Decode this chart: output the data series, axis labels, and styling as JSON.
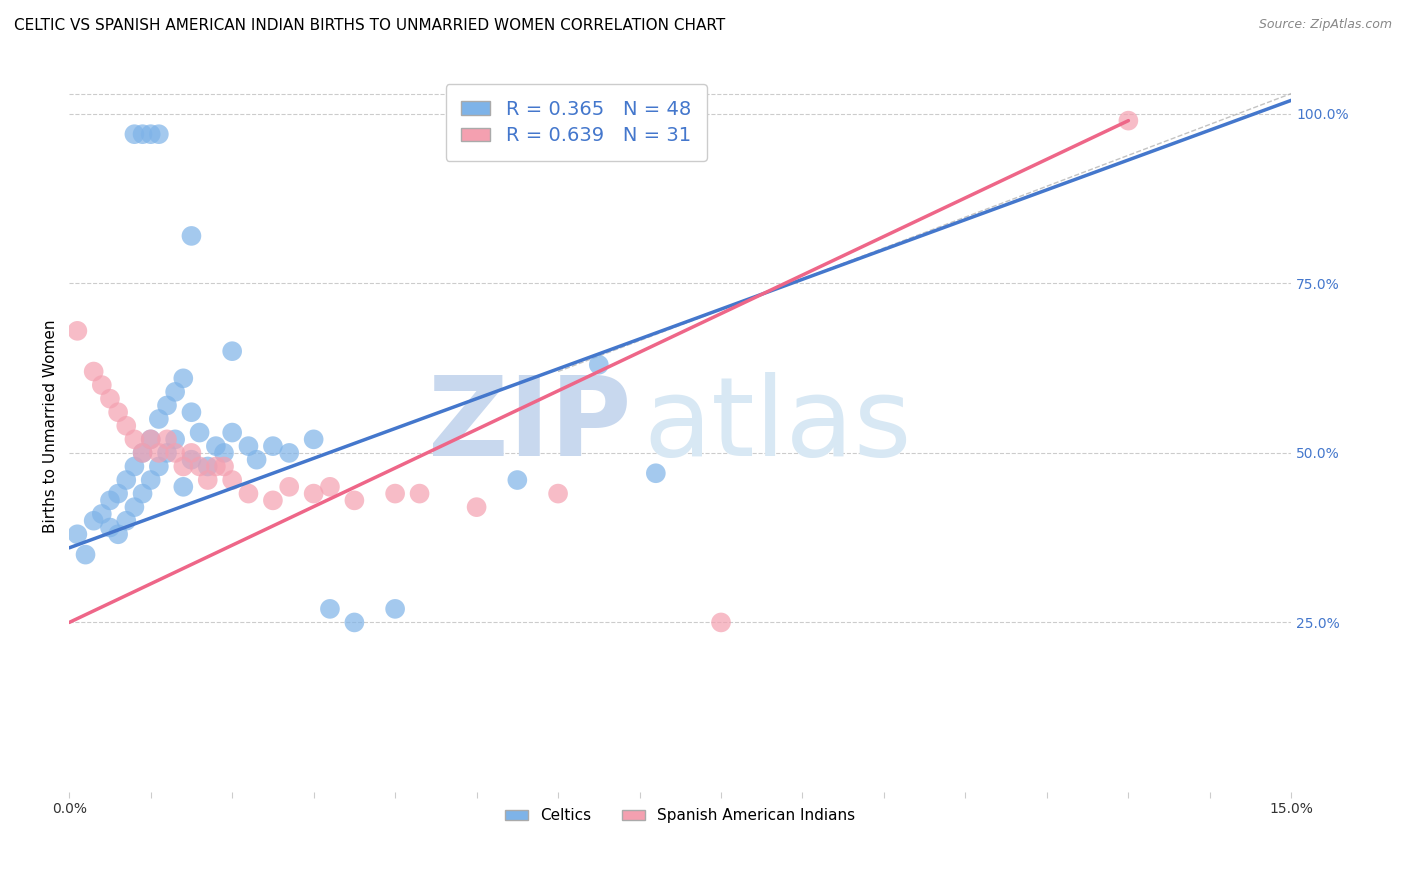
{
  "title": "CELTIC VS SPANISH AMERICAN INDIAN BIRTHS TO UNMARRIED WOMEN CORRELATION CHART",
  "source": "Source: ZipAtlas.com",
  "ylabel": "Births to Unmarried Women",
  "xlim": [
    0.0,
    0.15
  ],
  "ylim": [
    0.0,
    1.08
  ],
  "legend_label1": "R = 0.365   N = 48",
  "legend_label2": "R = 0.639   N = 31",
  "legend_labels_bottom": [
    "Celtics",
    "Spanish American Indians"
  ],
  "blue_color": "#7EB3E8",
  "pink_color": "#F4A0B0",
  "blue_line_color": "#4477CC",
  "pink_line_color": "#EE6688",
  "watermark_zip": "ZIP",
  "watermark_atlas": "atlas",
  "watermark_color": "#C8D8EE",
  "R_blue": 0.365,
  "N_blue": 48,
  "R_pink": 0.639,
  "N_pink": 31,
  "blue_line_x0": 0.0,
  "blue_line_y0": 0.36,
  "blue_line_x1": 0.15,
  "blue_line_y1": 1.02,
  "pink_line_x0": 0.0,
  "pink_line_y0": 0.25,
  "pink_line_x1": 0.13,
  "pink_line_y1": 0.99,
  "dash_line_x0": 0.06,
  "dash_line_y0": 0.62,
  "dash_line_x1": 0.15,
  "dash_line_y1": 1.03,
  "celtics_x": [
    0.001,
    0.002,
    0.003,
    0.004,
    0.005,
    0.005,
    0.006,
    0.006,
    0.007,
    0.007,
    0.008,
    0.008,
    0.009,
    0.009,
    0.01,
    0.01,
    0.011,
    0.011,
    0.012,
    0.012,
    0.013,
    0.013,
    0.014,
    0.014,
    0.015,
    0.015,
    0.016,
    0.017,
    0.018,
    0.019,
    0.02,
    0.022,
    0.023,
    0.025,
    0.027,
    0.03,
    0.032,
    0.035,
    0.04,
    0.055,
    0.065,
    0.072,
    0.008,
    0.009,
    0.01,
    0.011,
    0.015,
    0.02
  ],
  "celtics_y": [
    0.38,
    0.35,
    0.4,
    0.41,
    0.43,
    0.39,
    0.44,
    0.38,
    0.46,
    0.4,
    0.48,
    0.42,
    0.5,
    0.44,
    0.52,
    0.46,
    0.55,
    0.48,
    0.57,
    0.5,
    0.59,
    0.52,
    0.61,
    0.45,
    0.56,
    0.49,
    0.53,
    0.48,
    0.51,
    0.5,
    0.53,
    0.51,
    0.49,
    0.51,
    0.5,
    0.52,
    0.27,
    0.25,
    0.27,
    0.46,
    0.63,
    0.47,
    0.97,
    0.97,
    0.97,
    0.97,
    0.82,
    0.65
  ],
  "spanish_x": [
    0.001,
    0.003,
    0.004,
    0.005,
    0.006,
    0.007,
    0.008,
    0.009,
    0.01,
    0.011,
    0.012,
    0.013,
    0.014,
    0.015,
    0.016,
    0.017,
    0.018,
    0.019,
    0.02,
    0.022,
    0.025,
    0.027,
    0.03,
    0.032,
    0.035,
    0.04,
    0.043,
    0.05,
    0.06,
    0.08,
    0.13
  ],
  "spanish_y": [
    0.68,
    0.62,
    0.6,
    0.58,
    0.56,
    0.54,
    0.52,
    0.5,
    0.52,
    0.5,
    0.52,
    0.5,
    0.48,
    0.5,
    0.48,
    0.46,
    0.48,
    0.48,
    0.46,
    0.44,
    0.43,
    0.45,
    0.44,
    0.45,
    0.43,
    0.44,
    0.44,
    0.42,
    0.44,
    0.25,
    0.99
  ]
}
